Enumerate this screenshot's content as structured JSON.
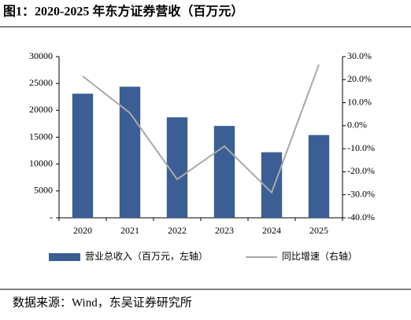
{
  "title": "图1：2020-2025 年东方证券营收（百万元）",
  "source": "数据来源：Wind，东吴证券研究所",
  "chart_data": {
    "type": "bar-line",
    "categories": [
      "2020",
      "2021",
      "2022",
      "2023",
      "2024",
      "2025"
    ],
    "series": [
      {
        "name": "营业总收入（百万元，左轴）",
        "type": "bar",
        "color": "#3b5f94",
        "values": [
          23100,
          24400,
          18700,
          17100,
          12200,
          15400
        ]
      },
      {
        "name": "同比增速（右轴）",
        "type": "line",
        "axis": "y2",
        "color": "#a9a9a9",
        "values": [
          21.5,
          5.5,
          -23.3,
          -8.9,
          -29,
          26.5
        ]
      }
    ],
    "ylim": [
      0,
      30000
    ],
    "yticks": [
      {
        "value": 0,
        "label": "-"
      },
      5000,
      10000,
      15000,
      20000,
      25000,
      30000
    ],
    "y2lim": [
      -40,
      30
    ],
    "y2ticks": [
      {
        "value": -40,
        "label": "-40.0%"
      },
      {
        "value": -30,
        "label": "-30.0%"
      },
      {
        "value": -20,
        "label": "-20.0%"
      },
      {
        "value": -10,
        "label": "-10.0%"
      },
      {
        "value": 0,
        "label": "0.0%"
      },
      {
        "value": 10,
        "label": "10.0%"
      },
      {
        "value": 20,
        "label": "20.0%"
      },
      {
        "value": 30,
        "label": "30.0%"
      }
    ],
    "legend": "bottom"
  }
}
